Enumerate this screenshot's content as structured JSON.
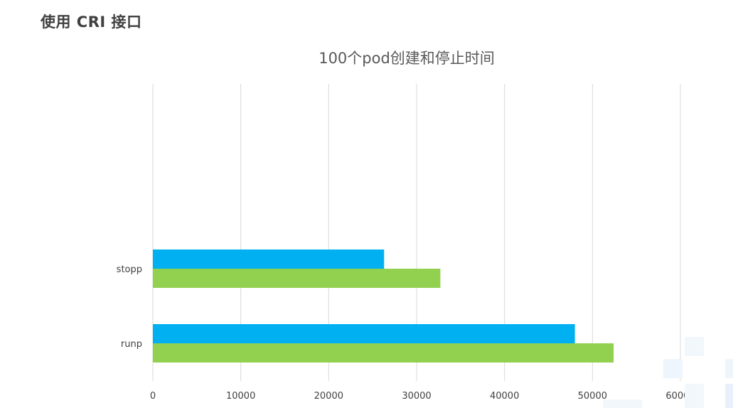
{
  "slide": {
    "title": "使用 CRI 接口"
  },
  "colors": {
    "series_a": "#00B0F0",
    "series_b": "#92D050",
    "grid": "#D9D9D9",
    "deco": "#EEF5FC"
  },
  "chart_data": {
    "type": "bar",
    "orientation": "horizontal",
    "title": "100个pod创建和停止时间",
    "xlabel": "",
    "ylabel": "",
    "categories": [
      "runp",
      "stopp"
    ],
    "series": [
      {
        "values": [
          48000,
          26300
        ]
      },
      {
        "values": [
          52400,
          32700
        ]
      }
    ],
    "xlim": [
      0,
      60000
    ],
    "ticks": [
      "0",
      "10000",
      "20000",
      "30000",
      "40000",
      "50000",
      "60000"
    ],
    "grid": true,
    "legend": "none"
  }
}
